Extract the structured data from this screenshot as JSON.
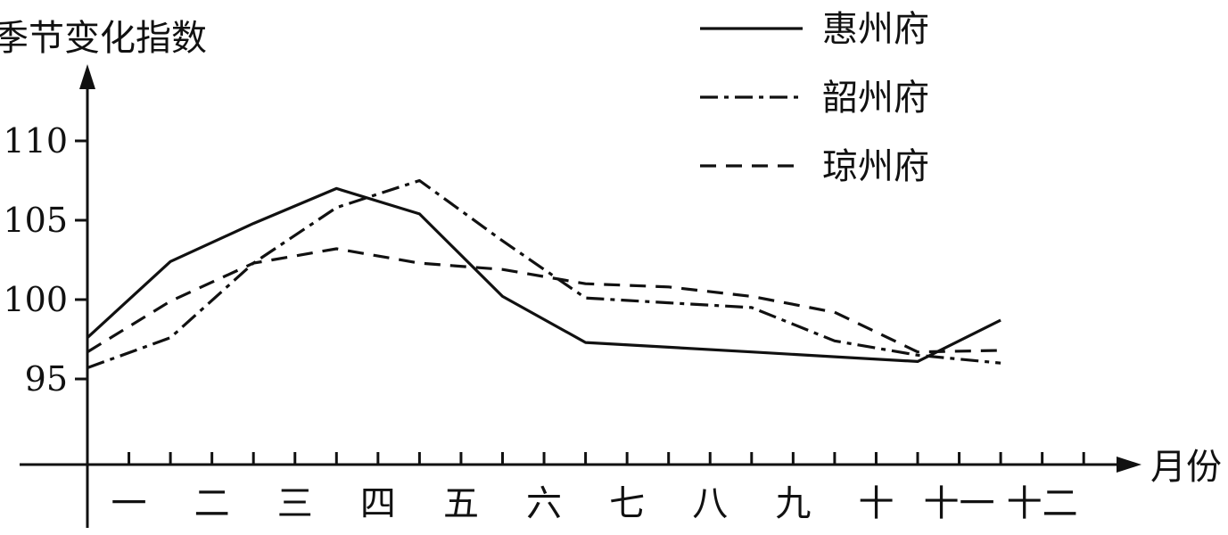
{
  "chart_data": {
    "type": "line",
    "ylabel": "季节变化指数",
    "xlabel": "月份",
    "categories": [
      "一",
      "二",
      "三",
      "四",
      "五",
      "六",
      "七",
      "八",
      "九",
      "十",
      "十一",
      "十二"
    ],
    "yticks": [
      95,
      100,
      105,
      110
    ],
    "ylim": [
      86,
      115
    ],
    "grid": false,
    "legend_position": "top-right",
    "series": [
      {
        "name": "惠州府",
        "style": "solid",
        "values": [
          97.6,
          102.4,
          104.8,
          107.0,
          105.4,
          100.2,
          97.3,
          97.0,
          96.7,
          96.4,
          96.1,
          98.7
        ]
      },
      {
        "name": "韶州府",
        "style": "dashdot",
        "values": [
          95.7,
          97.6,
          102.3,
          105.8,
          107.5,
          103.7,
          100.1,
          99.8,
          99.5,
          97.4,
          96.5,
          96.0
        ]
      },
      {
        "name": "琼州府",
        "style": "dashed",
        "values": [
          96.7,
          99.9,
          102.3,
          103.2,
          102.3,
          101.9,
          101.0,
          100.8,
          100.2,
          99.2,
          96.7,
          96.8
        ]
      }
    ]
  }
}
